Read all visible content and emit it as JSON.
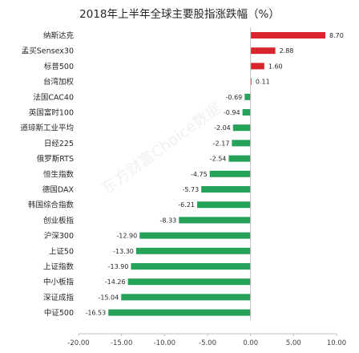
{
  "chart_data": {
    "type": "bar",
    "orientation": "horizontal",
    "title": "2018年上半年全球主要股指涨跌幅（%）",
    "xlabel": "",
    "ylabel": "",
    "xlim": [
      -20,
      10
    ],
    "x_ticks": [
      "-20.00",
      "-15.00",
      "-10.00",
      "-5.00",
      "0.00",
      "5.00",
      "10.00"
    ],
    "x_tick_values": [
      -20,
      -15,
      -10,
      -5,
      0,
      5,
      10
    ],
    "grid": false,
    "legend": "none",
    "categories": [
      "纳斯达克",
      "孟买Sensex30",
      "标普500",
      "台湾加权",
      "法国CAC40",
      "英国富时100",
      "道琼斯工业平均",
      "日经225",
      "俄罗斯RTS",
      "恒生指数",
      "德国DAX",
      "韩国综合指数",
      "创业板指",
      "沪深300",
      "上证50",
      "上证指数",
      "中小板指",
      "深证成指",
      "中证500"
    ],
    "values": [
      8.7,
      2.88,
      1.6,
      0.11,
      -0.69,
      -0.94,
      -2.04,
      -2.17,
      -2.54,
      -4.75,
      -5.73,
      -6.21,
      -8.33,
      -12.9,
      -13.3,
      -13.9,
      -14.26,
      -15.04,
      -16.53
    ],
    "value_labels": [
      "8.70",
      "2.88",
      "1.60",
      "0.11",
      "-0.69",
      "-0.94",
      "-2.04",
      "-2.17",
      "-2.54",
      "-4.75",
      "-5.73",
      "-6.21",
      "-8.33",
      "-12.90",
      "-13.30",
      "-13.90",
      "-14.26",
      "-15.04",
      "-16.53"
    ],
    "colors": {
      "positive": "#d9262e",
      "negative": "#26a35b"
    },
    "watermark": "东方财富Choice数据"
  }
}
